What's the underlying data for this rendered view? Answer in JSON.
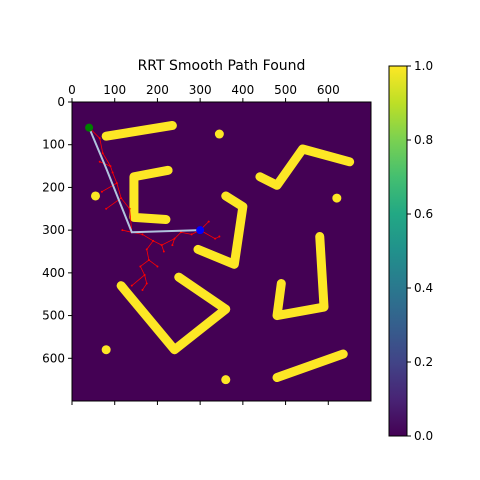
{
  "chart_data": {
    "type": "heatmap",
    "title": "RRT Smooth Path Found",
    "xlabel": "",
    "ylabel": "",
    "extent": [
      0,
      700,
      700,
      0
    ],
    "x_ticks": [
      0,
      100,
      200,
      300,
      400,
      500,
      600
    ],
    "y_ticks": [
      0,
      100,
      200,
      300,
      400,
      500,
      600
    ],
    "colorbar": {
      "vmin": 0.0,
      "vmax": 1.0,
      "ticks": [
        "0.0",
        "0.2",
        "0.4",
        "0.6",
        "0.8",
        "1.0"
      ],
      "colormap": "viridis"
    },
    "colors": {
      "background": "#440154",
      "obstacle": "#fde725",
      "start": "#008000",
      "goal": "#0000ff",
      "tree": "#ff0000",
      "path": "#b0c4de"
    },
    "obstacles": {
      "segments": [
        {
          "name": "bar-top-left",
          "points": [
            [
              80,
              80
            ],
            [
              235,
              55
            ]
          ]
        },
        {
          "name": "c-shape",
          "points": [
            [
              225,
              160
            ],
            [
              145,
              175
            ],
            [
              145,
              270
            ],
            [
              220,
              275
            ]
          ]
        },
        {
          "name": "hook-center",
          "points": [
            [
              360,
              220
            ],
            [
              400,
              245
            ],
            [
              380,
              380
            ],
            [
              295,
              345
            ]
          ]
        },
        {
          "name": "v-shape-lower",
          "points": [
            [
              115,
              430
            ],
            [
              240,
              580
            ],
            [
              360,
              485
            ],
            [
              250,
              410
            ]
          ]
        },
        {
          "name": "chevron-top-right",
          "points": [
            [
              440,
              175
            ],
            [
              480,
              195
            ],
            [
              540,
              110
            ],
            [
              650,
              140
            ]
          ]
        },
        {
          "name": "l-shape-right",
          "points": [
            [
              490,
              425
            ],
            [
              480,
              500
            ],
            [
              590,
              480
            ],
            [
              580,
              315
            ]
          ]
        },
        {
          "name": "bar-bottom-right",
          "points": [
            [
              480,
              645
            ],
            [
              635,
              590
            ]
          ]
        }
      ],
      "dots": [
        {
          "name": "dot-1",
          "point": [
            345,
            75
          ]
        },
        {
          "name": "dot-2",
          "point": [
            620,
            225
          ]
        },
        {
          "name": "dot-3",
          "point": [
            55,
            220
          ]
        },
        {
          "name": "dot-4",
          "point": [
            80,
            580
          ]
        },
        {
          "name": "dot-5",
          "point": [
            360,
            650
          ]
        }
      ]
    },
    "start": [
      40,
      60
    ],
    "goal": [
      300,
      300
    ],
    "smooth_path": [
      [
        40,
        60
      ],
      [
        80,
        155
      ],
      [
        140,
        305
      ],
      [
        300,
        300
      ]
    ],
    "rrt_tree": [
      [
        [
          40,
          60
        ],
        [
          65,
          85
        ]
      ],
      [
        [
          65,
          85
        ],
        [
          72,
          120
        ]
      ],
      [
        [
          72,
          120
        ],
        [
          90,
          150
        ]
      ],
      [
        [
          90,
          150
        ],
        [
          95,
          165
        ]
      ],
      [
        [
          90,
          150
        ],
        [
          65,
          140
        ]
      ],
      [
        [
          95,
          165
        ],
        [
          105,
          190
        ]
      ],
      [
        [
          105,
          190
        ],
        [
          70,
          210
        ]
      ],
      [
        [
          105,
          190
        ],
        [
          115,
          225
        ]
      ],
      [
        [
          115,
          225
        ],
        [
          80,
          250
        ]
      ],
      [
        [
          115,
          225
        ],
        [
          135,
          250
        ]
      ],
      [
        [
          135,
          250
        ],
        [
          140,
          305
        ]
      ],
      [
        [
          140,
          305
        ],
        [
          165,
          310
        ]
      ],
      [
        [
          165,
          310
        ],
        [
          190,
          325
        ]
      ],
      [
        [
          190,
          325
        ],
        [
          210,
          335
        ]
      ],
      [
        [
          190,
          325
        ],
        [
          175,
          345
        ]
      ],
      [
        [
          175,
          345
        ],
        [
          180,
          370
        ]
      ],
      [
        [
          180,
          370
        ],
        [
          200,
          385
        ]
      ],
      [
        [
          180,
          370
        ],
        [
          160,
          385
        ]
      ],
      [
        [
          160,
          385
        ],
        [
          170,
          405
        ]
      ],
      [
        [
          170,
          405
        ],
        [
          140,
          430
        ]
      ],
      [
        [
          170,
          405
        ],
        [
          175,
          425
        ]
      ],
      [
        [
          175,
          425
        ],
        [
          165,
          440
        ]
      ],
      [
        [
          210,
          335
        ],
        [
          240,
          320
        ]
      ],
      [
        [
          240,
          320
        ],
        [
          255,
          305
        ]
      ],
      [
        [
          255,
          305
        ],
        [
          280,
          310
        ]
      ],
      [
        [
          280,
          310
        ],
        [
          300,
          300
        ]
      ],
      [
        [
          300,
          300
        ],
        [
          335,
          320
        ]
      ],
      [
        [
          335,
          320
        ],
        [
          345,
          315
        ]
      ],
      [
        [
          300,
          300
        ],
        [
          320,
          280
        ]
      ],
      [
        [
          240,
          320
        ],
        [
          235,
          335
        ]
      ],
      [
        [
          140,
          305
        ],
        [
          118,
          300
        ]
      ],
      [
        [
          210,
          335
        ],
        [
          215,
          350
        ]
      ]
    ]
  }
}
